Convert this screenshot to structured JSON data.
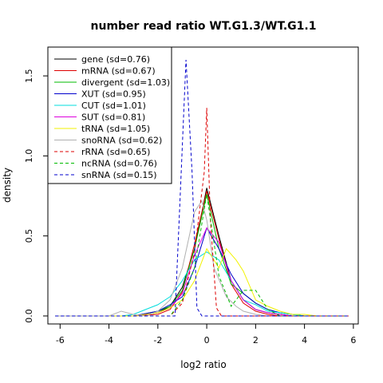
{
  "chart_data": {
    "type": "line",
    "title": "number read ratio WT.G1.3/WT.G1.1",
    "xlabel": "log2 ratio",
    "ylabel": "density",
    "xlim": [
      -6.5,
      6.2
    ],
    "ylim": [
      -0.05,
      1.68
    ],
    "x_ticks": [
      -6,
      -4,
      -2,
      0,
      2,
      4,
      6
    ],
    "x_tick_labels": [
      "-6",
      "-4",
      "-2",
      "0",
      "2",
      "4",
      "6"
    ],
    "y_ticks": [
      0.0,
      0.5,
      1.0,
      1.5
    ],
    "y_tick_labels": [
      "0.0",
      "0.5",
      "1.0",
      "1.5"
    ],
    "grid": false,
    "legend_position": "top-left",
    "series": [
      {
        "name": "gene (sd=0.76)",
        "color": "#000000",
        "dash": "solid",
        "points": [
          [
            -6.2,
            0
          ],
          [
            -3,
            0
          ],
          [
            -2,
            0.02
          ],
          [
            -1.5,
            0.06
          ],
          [
            -1,
            0.18
          ],
          [
            -0.5,
            0.42
          ],
          [
            0,
            0.8
          ],
          [
            0.5,
            0.5
          ],
          [
            1,
            0.22
          ],
          [
            1.5,
            0.1
          ],
          [
            2,
            0.04
          ],
          [
            2.5,
            0.02
          ],
          [
            3,
            0.01
          ],
          [
            3.5,
            0
          ],
          [
            5.8,
            0
          ]
        ]
      },
      {
        "name": "mRNA (sd=0.67)",
        "color": "#dd0000",
        "dash": "solid",
        "points": [
          [
            -6.2,
            0
          ],
          [
            -3,
            0
          ],
          [
            -2,
            0.01
          ],
          [
            -1.5,
            0.04
          ],
          [
            -1,
            0.15
          ],
          [
            -0.5,
            0.45
          ],
          [
            0,
            0.78
          ],
          [
            0.5,
            0.48
          ],
          [
            1,
            0.2
          ],
          [
            1.5,
            0.08
          ],
          [
            2,
            0.03
          ],
          [
            2.5,
            0.01
          ],
          [
            3,
            0
          ],
          [
            5.8,
            0
          ]
        ]
      },
      {
        "name": "divergent (sd=1.03)",
        "color": "#00bb00",
        "dash": "solid",
        "points": [
          [
            -6.2,
            0
          ],
          [
            -3,
            0
          ],
          [
            -2,
            0.03
          ],
          [
            -1.5,
            0.06
          ],
          [
            -1,
            0.16
          ],
          [
            -0.5,
            0.42
          ],
          [
            0,
            0.76
          ],
          [
            0.5,
            0.42
          ],
          [
            1,
            0.2
          ],
          [
            1.5,
            0.14
          ],
          [
            2,
            0.08
          ],
          [
            2.5,
            0.04
          ],
          [
            3,
            0.02
          ],
          [
            3.5,
            0.01
          ],
          [
            4,
            0
          ],
          [
            5.8,
            0
          ]
        ]
      },
      {
        "name": "XUT (sd=0.95)",
        "color": "#0000cc",
        "dash": "solid",
        "points": [
          [
            -6.2,
            0
          ],
          [
            -3,
            0
          ],
          [
            -2,
            0.03
          ],
          [
            -1.5,
            0.07
          ],
          [
            -1,
            0.12
          ],
          [
            -0.5,
            0.3
          ],
          [
            0,
            0.55
          ],
          [
            0.5,
            0.42
          ],
          [
            1,
            0.26
          ],
          [
            1.5,
            0.14
          ],
          [
            2,
            0.08
          ],
          [
            2.5,
            0.04
          ],
          [
            3,
            0.02
          ],
          [
            3.5,
            0.01
          ],
          [
            4,
            0
          ],
          [
            5.8,
            0
          ]
        ]
      },
      {
        "name": "CUT (sd=1.01)",
        "color": "#00dddd",
        "dash": "solid",
        "points": [
          [
            -6.2,
            0
          ],
          [
            -3.5,
            0
          ],
          [
            -3,
            0.01
          ],
          [
            -2.5,
            0.04
          ],
          [
            -2,
            0.07
          ],
          [
            -1.5,
            0.12
          ],
          [
            -1,
            0.22
          ],
          [
            -0.5,
            0.35
          ],
          [
            0,
            0.4
          ],
          [
            0.5,
            0.35
          ],
          [
            1,
            0.22
          ],
          [
            1.5,
            0.1
          ],
          [
            2,
            0.07
          ],
          [
            2.5,
            0.03
          ],
          [
            3,
            0.02
          ],
          [
            3.5,
            0.01
          ],
          [
            4,
            0
          ],
          [
            5.8,
            0
          ]
        ]
      },
      {
        "name": "SUT (sd=0.81)",
        "color": "#dd00dd",
        "dash": "solid",
        "points": [
          [
            -6.2,
            0
          ],
          [
            -3,
            0
          ],
          [
            -2,
            0.02
          ],
          [
            -1.5,
            0.05
          ],
          [
            -1,
            0.14
          ],
          [
            -0.5,
            0.38
          ],
          [
            0,
            0.55
          ],
          [
            0.5,
            0.46
          ],
          [
            1,
            0.22
          ],
          [
            1.5,
            0.1
          ],
          [
            2,
            0.04
          ],
          [
            2.5,
            0.02
          ],
          [
            3,
            0.01
          ],
          [
            3.5,
            0
          ],
          [
            5.8,
            0
          ]
        ]
      },
      {
        "name": "tRNA (sd=1.05)",
        "color": "#f2f200",
        "dash": "solid",
        "points": [
          [
            -6.2,
            0
          ],
          [
            -3,
            0
          ],
          [
            -2,
            0.02
          ],
          [
            -1.5,
            0.05
          ],
          [
            -1,
            0.1
          ],
          [
            -0.5,
            0.22
          ],
          [
            0,
            0.42
          ],
          [
            0.5,
            0.3
          ],
          [
            0.8,
            0.42
          ],
          [
            1.2,
            0.35
          ],
          [
            1.5,
            0.28
          ],
          [
            2,
            0.1
          ],
          [
            2.5,
            0.06
          ],
          [
            3,
            0.03
          ],
          [
            3.5,
            0.01
          ],
          [
            4,
            0.01
          ],
          [
            4.5,
            0
          ],
          [
            5.8,
            0
          ]
        ]
      },
      {
        "name": "snoRNA (sd=0.62)",
        "color": "#b0b0b0",
        "dash": "solid",
        "points": [
          [
            -6.2,
            0
          ],
          [
            -4,
            0
          ],
          [
            -3.5,
            0.03
          ],
          [
            -3,
            0.01
          ],
          [
            -2.5,
            0
          ],
          [
            -2,
            0.03
          ],
          [
            -1.5,
            0.1
          ],
          [
            -1,
            0.3
          ],
          [
            -0.5,
            0.65
          ],
          [
            -0.2,
            0.72
          ],
          [
            0,
            0.6
          ],
          [
            0.3,
            0.3
          ],
          [
            0.8,
            0.12
          ],
          [
            1.2,
            0.06
          ],
          [
            1.5,
            0.03
          ],
          [
            2,
            0.01
          ],
          [
            2.5,
            0
          ],
          [
            5.8,
            0
          ]
        ]
      },
      {
        "name": "rRNA (sd=0.65)",
        "color": "#dd0000",
        "dash": "dashed",
        "points": [
          [
            -6.2,
            0
          ],
          [
            -1.5,
            0
          ],
          [
            -1,
            0.08
          ],
          [
            -0.5,
            0.4
          ],
          [
            -0.1,
            0.9
          ],
          [
            0,
            1.3
          ],
          [
            0.15,
            0.6
          ],
          [
            0.4,
            0.05
          ],
          [
            0.6,
            0
          ],
          [
            5.8,
            0
          ]
        ]
      },
      {
        "name": "ncRNA (sd=0.76)",
        "color": "#00bb00",
        "dash": "dashed",
        "points": [
          [
            -6.2,
            0
          ],
          [
            -1.5,
            0
          ],
          [
            -1,
            0.1
          ],
          [
            -0.5,
            0.3
          ],
          [
            0,
            0.76
          ],
          [
            0.5,
            0.25
          ],
          [
            1,
            0.06
          ],
          [
            1.5,
            0.16
          ],
          [
            2,
            0.16
          ],
          [
            2.5,
            0.04
          ],
          [
            3,
            0
          ],
          [
            5.8,
            0
          ]
        ]
      },
      {
        "name": "snRNA (sd=0.15)",
        "color": "#0000cc",
        "dash": "dashed",
        "points": [
          [
            -6.2,
            0
          ],
          [
            -1.3,
            0
          ],
          [
            -1.1,
            0.7
          ],
          [
            -0.85,
            1.6
          ],
          [
            -0.6,
            0.9
          ],
          [
            -0.4,
            0.05
          ],
          [
            -0.2,
            0
          ],
          [
            5.8,
            0
          ]
        ]
      }
    ]
  }
}
